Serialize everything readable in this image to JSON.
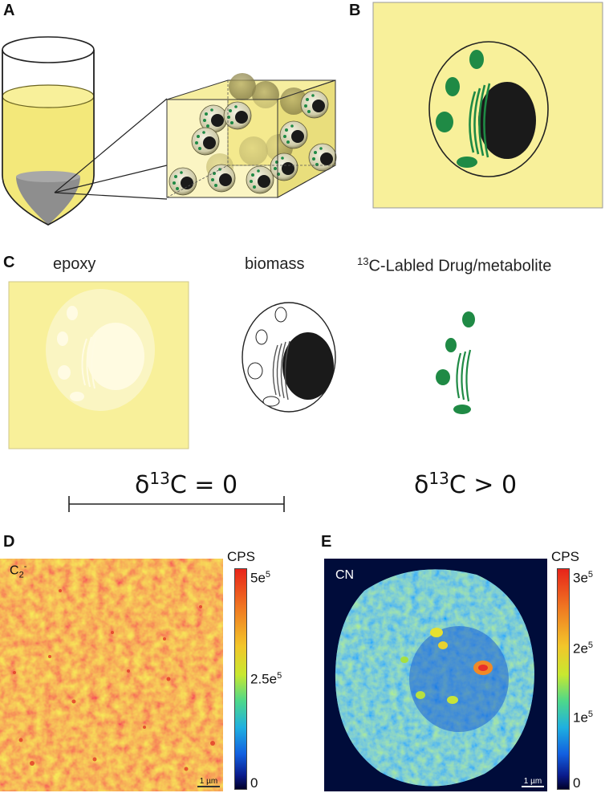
{
  "panels": {
    "a": {
      "letter": "A"
    },
    "b": {
      "letter": "B"
    },
    "c": {
      "letter": "C",
      "epoxy_label": "epoxy",
      "biomass_label": "biomass",
      "drug_label_sup": "13",
      "drug_label_rest": "C-Labled Drug/metabolite",
      "delta_zero": {
        "prefix": "δ",
        "sup": "13",
        "rest": "C = 0"
      },
      "delta_pos": {
        "prefix": "δ",
        "sup": "13",
        "rest": "C > 0"
      }
    },
    "d": {
      "letter": "D",
      "ion": "C",
      "ion_sub": "2",
      "ion_sup": "-",
      "unit": "CPS",
      "ticks": [
        {
          "base": "5e",
          "exp": "5"
        },
        {
          "base": "2.5e",
          "exp": "5"
        },
        {
          "base": "0",
          "exp": ""
        }
      ],
      "scale_bar": "1 µm"
    },
    "e": {
      "letter": "E",
      "ion": "CN",
      "unit": "CPS",
      "ticks": [
        {
          "base": "3e",
          "exp": "5"
        },
        {
          "base": "2e",
          "exp": "5"
        },
        {
          "base": "1e",
          "exp": "5"
        },
        {
          "base": "0",
          "exp": ""
        }
      ],
      "scale_bar": "1 µm"
    }
  },
  "colors": {
    "epoxy_yellow": "#f8f09a",
    "tube_liquid": "#f3e87a",
    "pellet_grey": "#8e8e8e",
    "organelle_green": "#1f8a45",
    "nucleus_black": "#1a1a1a",
    "map_d_base": "#f2a228",
    "map_e_background": "#000c3a"
  }
}
